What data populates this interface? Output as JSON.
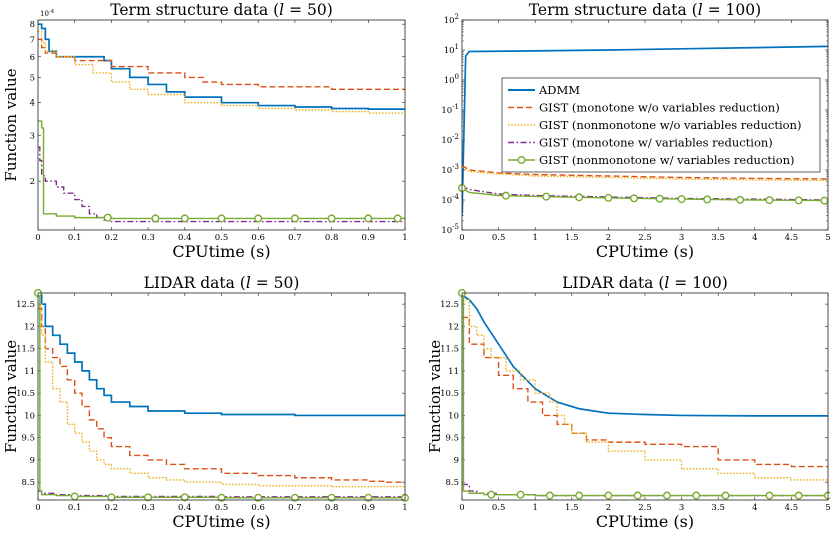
{
  "figure": {
    "ylabel": "Function value",
    "legend": {
      "placement": "inside top-right panel",
      "entries": [
        {
          "label": "ADMM",
          "color": "#0072BD",
          "style": "solid"
        },
        {
          "label": "GIST (monotone w/o variables reduction)",
          "color": "#D95319",
          "style": "dashed"
        },
        {
          "label": "GIST (nonmonotone w/o variables reduction)",
          "color": "#EDB120",
          "style": "dotted"
        },
        {
          "label": "GIST (monotone w/ variables reduction)",
          "color": "#7E2F8E",
          "style": "dashdot"
        },
        {
          "label": "GIST (nonmonotone w/ variables reduction)",
          "color": "#77AC30",
          "style": "solid-circle"
        }
      ]
    }
  },
  "chart_data": [
    {
      "type": "line",
      "title": "Term structure data (l = 50)",
      "title_main": "Term structure data (",
      "title_var": "l",
      "title_rest": " = 50)",
      "xlabel": "CPUtime (s)",
      "ylabel": "Function value",
      "xlim": [
        0,
        1
      ],
      "ylim": [
        1.3,
        8.3
      ],
      "yscale": "log",
      "y_multiplier": "10^-4",
      "xticks": [
        0,
        0.1,
        0.2,
        0.3,
        0.4,
        0.5,
        0.6,
        0.7,
        0.8,
        0.9,
        1
      ],
      "xtick_labels": [
        "0",
        "0.1",
        "0.2",
        "0.3",
        "0.4",
        "0.5",
        "0.6",
        "0.7",
        "0.8",
        "0.9",
        "1"
      ],
      "yticks": [
        2,
        3,
        4,
        5,
        6,
        7,
        8
      ],
      "ytick_labels": [
        "2",
        "3",
        "4",
        "5",
        "6",
        "7",
        "8"
      ],
      "series": [
        {
          "name": "ADMM",
          "step": true,
          "x": [
            0,
            0.01,
            0.02,
            0.03,
            0.05,
            0.1,
            0.18,
            0.2,
            0.25,
            0.3,
            0.35,
            0.4,
            0.5,
            0.6,
            0.7,
            0.8,
            0.9,
            1.0
          ],
          "y": [
            8.0,
            7.7,
            7.0,
            6.3,
            6.0,
            6.0,
            5.8,
            5.4,
            5.0,
            4.7,
            4.4,
            4.2,
            4.0,
            3.9,
            3.85,
            3.8,
            3.78,
            3.78
          ]
        },
        {
          "name": "GIST (monotone w/o variables reduction)",
          "step": true,
          "x": [
            0,
            0.01,
            0.02,
            0.05,
            0.1,
            0.2,
            0.3,
            0.4,
            0.45,
            0.5,
            0.6,
            0.8,
            1.0
          ],
          "y": [
            7.0,
            6.5,
            6.2,
            6.0,
            5.8,
            5.5,
            5.2,
            5.0,
            4.8,
            4.7,
            4.6,
            4.5,
            4.5
          ]
        },
        {
          "name": "GIST (nonmonotone w/o variables reduction)",
          "step": true,
          "x": [
            0,
            0.01,
            0.02,
            0.05,
            0.1,
            0.15,
            0.2,
            0.25,
            0.3,
            0.4,
            0.5,
            0.6,
            0.7,
            0.8,
            0.9,
            1.0
          ],
          "y": [
            7.5,
            6.8,
            6.3,
            6.0,
            5.6,
            5.2,
            4.8,
            4.5,
            4.3,
            4.0,
            3.9,
            3.8,
            3.75,
            3.7,
            3.65,
            3.55
          ]
        },
        {
          "name": "GIST (monotone w/ variables reduction)",
          "step": true,
          "x": [
            0,
            0.005,
            0.01,
            0.02,
            0.05,
            0.07,
            0.1,
            0.12,
            0.14,
            0.16,
            0.18,
            0.2,
            1.0
          ],
          "y": [
            2.7,
            2.4,
            2.1,
            2.0,
            1.9,
            1.8,
            1.7,
            1.6,
            1.5,
            1.45,
            1.42,
            1.4,
            1.4
          ]
        },
        {
          "name": "GIST (nonmonotone w/ variables reduction)",
          "step": true,
          "x": [
            0,
            0.01,
            0.015,
            0.02,
            0.05,
            0.1,
            0.2,
            1.0
          ],
          "y": [
            3.4,
            3.2,
            1.5,
            1.5,
            1.47,
            1.45,
            1.44,
            1.44
          ],
          "marker_x": [
            0.19,
            0.32,
            0.4,
            0.5,
            0.6,
            0.7,
            0.8,
            0.9,
            0.98
          ]
        }
      ]
    },
    {
      "type": "line",
      "title": "Term structure data (l = 100)",
      "title_main": "Term structure data (",
      "title_var": "l",
      "title_rest": " = 100)",
      "xlabel": "CPUtime (s)",
      "ylabel": "",
      "xlim": [
        0,
        5
      ],
      "ylim": [
        -5,
        2
      ],
      "yscale": "log-exponent",
      "xticks": [
        0,
        0.5,
        1,
        1.5,
        2,
        2.5,
        3,
        3.5,
        4,
        4.5,
        5
      ],
      "xtick_labels": [
        "0",
        "0.5",
        "1",
        "1.5",
        "2",
        "2.5",
        "3",
        "3.5",
        "4",
        "4.5",
        "5"
      ],
      "yticks": [
        -5,
        -4,
        -3,
        -2,
        -1,
        0,
        1,
        2
      ],
      "ytick_labels": [
        "10^-5",
        "10^-4",
        "10^-3",
        "10^-2",
        "10^-1",
        "10^0",
        "10^1",
        "10^2"
      ],
      "series": [
        {
          "name": "ADMM",
          "step": false,
          "x": [
            0,
            0.05,
            0.1,
            1,
            2,
            3,
            4,
            5
          ],
          "y": [
            -4.5,
            0.8,
            0.95,
            0.97,
            1.0,
            1.04,
            1.08,
            1.12
          ]
        },
        {
          "name": "GIST (monotone w/o variables reduction)",
          "step": false,
          "x": [
            0,
            0.1,
            0.5,
            1,
            2,
            3,
            4,
            5
          ],
          "y": [
            -2.85,
            -3.0,
            -3.1,
            -3.15,
            -3.2,
            -3.25,
            -3.28,
            -3.3
          ]
        },
        {
          "name": "GIST (nonmonotone w/o variables reduction)",
          "step": false,
          "x": [
            0,
            0.1,
            0.5,
            1,
            2,
            3,
            4,
            5
          ],
          "y": [
            -2.9,
            -3.05,
            -3.13,
            -3.2,
            -3.25,
            -3.3,
            -3.33,
            -3.35
          ]
        },
        {
          "name": "GIST (monotone w/ variables reduction)",
          "step": false,
          "x": [
            0,
            0.1,
            0.5,
            1,
            2,
            3,
            4,
            5
          ],
          "y": [
            -3.55,
            -3.65,
            -3.8,
            -3.85,
            -3.9,
            -3.95,
            -3.97,
            -4.0
          ]
        },
        {
          "name": "GIST (nonmonotone w/ variables reduction)",
          "step": false,
          "x": [
            0,
            0.1,
            0.5,
            1,
            2,
            3,
            4,
            5
          ],
          "y": [
            -3.6,
            -3.75,
            -3.85,
            -3.88,
            -3.93,
            -3.97,
            -4.0,
            -4.02
          ],
          "marker_x": [
            0,
            0.6,
            1.15,
            1.6,
            2.0,
            2.35,
            2.7,
            3.0,
            3.35,
            3.8,
            4.2,
            4.6,
            4.95
          ]
        }
      ]
    },
    {
      "type": "line",
      "title": "LIDAR data (l = 50)",
      "title_main": "LIDAR data (",
      "title_var": "l",
      "title_rest": " = 50)",
      "xlabel": "CPUtime (s)",
      "ylabel": "Function value",
      "xlim": [
        0,
        1
      ],
      "ylim": [
        8.1,
        12.75
      ],
      "yscale": "linear",
      "xticks": [
        0,
        0.1,
        0.2,
        0.3,
        0.4,
        0.5,
        0.6,
        0.7,
        0.8,
        0.9,
        1
      ],
      "xtick_labels": [
        "0",
        "0.1",
        "0.2",
        "0.3",
        "0.4",
        "0.5",
        "0.6",
        "0.7",
        "0.8",
        "0.9",
        "1"
      ],
      "yticks": [
        8.5,
        9,
        9.5,
        10,
        10.5,
        11,
        11.5,
        12,
        12.5
      ],
      "ytick_labels": [
        "8.5",
        "9",
        "9.5",
        "10",
        "10.5",
        "11",
        "11.5",
        "12",
        "12.5"
      ],
      "series": [
        {
          "name": "ADMM",
          "step": true,
          "x": [
            0,
            0.01,
            0.02,
            0.04,
            0.06,
            0.08,
            0.1,
            0.12,
            0.14,
            0.16,
            0.18,
            0.2,
            0.25,
            0.3,
            0.4,
            0.5,
            0.7,
            1.0
          ],
          "y": [
            12.7,
            12.5,
            12.0,
            11.8,
            11.6,
            11.4,
            11.2,
            11.0,
            10.8,
            10.6,
            10.45,
            10.3,
            10.2,
            10.1,
            10.05,
            10.02,
            10.0,
            10.0
          ]
        },
        {
          "name": "GIST (monotone w/o variables reduction)",
          "step": true,
          "x": [
            0,
            0.01,
            0.02,
            0.04,
            0.06,
            0.08,
            0.1,
            0.12,
            0.14,
            0.16,
            0.18,
            0.2,
            0.25,
            0.3,
            0.35,
            0.4,
            0.5,
            0.6,
            0.7,
            0.8,
            0.9,
            0.95,
            1.0
          ],
          "y": [
            12.4,
            12.0,
            11.5,
            11.3,
            11.1,
            10.8,
            10.5,
            10.2,
            9.9,
            9.7,
            9.5,
            9.3,
            9.1,
            9.0,
            8.9,
            8.8,
            8.7,
            8.65,
            8.6,
            8.55,
            8.52,
            8.5,
            8.5
          ]
        },
        {
          "name": "GIST (nonmonotone w/o variables reduction)",
          "step": true,
          "x": [
            0,
            0.01,
            0.02,
            0.04,
            0.06,
            0.08,
            0.1,
            0.12,
            0.14,
            0.16,
            0.18,
            0.2,
            0.25,
            0.3,
            0.35,
            0.4,
            0.5,
            0.6,
            0.8,
            1.0
          ],
          "y": [
            12.5,
            11.8,
            11.2,
            10.6,
            10.3,
            9.8,
            9.6,
            9.4,
            9.2,
            9.0,
            8.9,
            8.8,
            8.7,
            8.6,
            8.55,
            8.5,
            8.45,
            8.42,
            8.4,
            8.4
          ]
        },
        {
          "name": "GIST (monotone w/ variables reduction)",
          "step": true,
          "x": [
            0,
            0.01,
            0.05,
            0.1,
            0.2,
            0.5,
            1.0
          ],
          "y": [
            8.3,
            8.25,
            8.22,
            8.2,
            8.18,
            8.17,
            8.17
          ]
        },
        {
          "name": "GIST (nonmonotone w/ variables reduction)",
          "step": true,
          "x": [
            0,
            0.005,
            0.01,
            0.05,
            0.1,
            0.2,
            0.5,
            1.0
          ],
          "y": [
            12.75,
            8.3,
            8.22,
            8.2,
            8.18,
            8.16,
            8.15,
            8.15
          ],
          "marker_x": [
            0,
            0.1,
            0.2,
            0.3,
            0.4,
            0.5,
            0.6,
            0.7,
            0.8,
            0.9,
            1.0
          ]
        }
      ]
    },
    {
      "type": "line",
      "title": "LIDAR data (l = 100)",
      "title_main": "LIDAR data (",
      "title_var": "l",
      "title_rest": " = 100)",
      "xlabel": "CPUtime (s)",
      "ylabel": "Function value",
      "xlim": [
        0,
        5
      ],
      "ylim": [
        8.1,
        12.75
      ],
      "yscale": "linear",
      "xticks": [
        0,
        0.5,
        1,
        1.5,
        2,
        2.5,
        3,
        3.5,
        4,
        4.5,
        5
      ],
      "xtick_labels": [
        "0",
        "0.5",
        "1",
        "1.5",
        "2",
        "2.5",
        "3",
        "3.5",
        "4",
        "4.5",
        "5"
      ],
      "yticks": [
        8.5,
        9,
        9.5,
        10,
        10.5,
        11,
        11.5,
        12,
        12.5
      ],
      "ytick_labels": [
        "8.5",
        "9",
        "9.5",
        "10",
        "10.5",
        "11",
        "11.5",
        "12",
        "12.5"
      ],
      "series": [
        {
          "name": "ADMM",
          "step": false,
          "x": [
            0,
            0.1,
            0.2,
            0.3,
            0.5,
            0.7,
            1.0,
            1.3,
            1.6,
            2.0,
            2.5,
            3.0,
            4.0,
            5.0
          ],
          "y": [
            12.7,
            12.6,
            12.4,
            12.1,
            11.6,
            11.1,
            10.6,
            10.3,
            10.15,
            10.05,
            10.02,
            10.0,
            9.99,
            9.99
          ]
        },
        {
          "name": "GIST (monotone w/o variables reduction)",
          "step": true,
          "x": [
            0,
            0.1,
            0.3,
            0.5,
            0.7,
            0.9,
            1.1,
            1.3,
            1.5,
            1.7,
            2.0,
            2.5,
            3.0,
            3.5,
            4.0,
            4.5,
            5.0
          ],
          "y": [
            12.2,
            11.6,
            11.3,
            10.9,
            10.6,
            10.3,
            10.0,
            9.8,
            9.6,
            9.45,
            9.4,
            9.35,
            9.3,
            9.0,
            8.9,
            8.85,
            8.85
          ]
        },
        {
          "name": "GIST (nonmonotone w/o variables reduction)",
          "step": true,
          "x": [
            0,
            0.1,
            0.2,
            0.3,
            0.4,
            0.6,
            0.8,
            1.0,
            1.2,
            1.3,
            1.4,
            1.5,
            1.7,
            2.0,
            2.5,
            3.0,
            3.5,
            4.0,
            4.5,
            5.0
          ],
          "y": [
            12.6,
            12.0,
            11.8,
            11.5,
            11.3,
            11.0,
            10.8,
            10.5,
            10.3,
            10.0,
            9.8,
            9.6,
            9.4,
            9.2,
            9.0,
            8.8,
            8.7,
            8.6,
            8.55,
            8.5
          ]
        },
        {
          "name": "GIST (monotone w/ variables reduction)",
          "step": true,
          "x": [
            0,
            0.1,
            0.2,
            0.5,
            1.0,
            5.0
          ],
          "y": [
            8.45,
            8.3,
            8.25,
            8.22,
            8.2,
            8.2
          ]
        },
        {
          "name": "GIST (nonmonotone w/ variables reduction)",
          "step": true,
          "x": [
            0,
            0.02,
            0.1,
            0.3,
            1.0,
            5.0
          ],
          "y": [
            12.75,
            8.3,
            8.25,
            8.22,
            8.2,
            8.2
          ],
          "marker_x": [
            0,
            0.4,
            0.8,
            1.2,
            1.6,
            2.0,
            2.4,
            2.8,
            3.2,
            3.6,
            4.2,
            4.6,
            5.0
          ]
        }
      ]
    }
  ]
}
